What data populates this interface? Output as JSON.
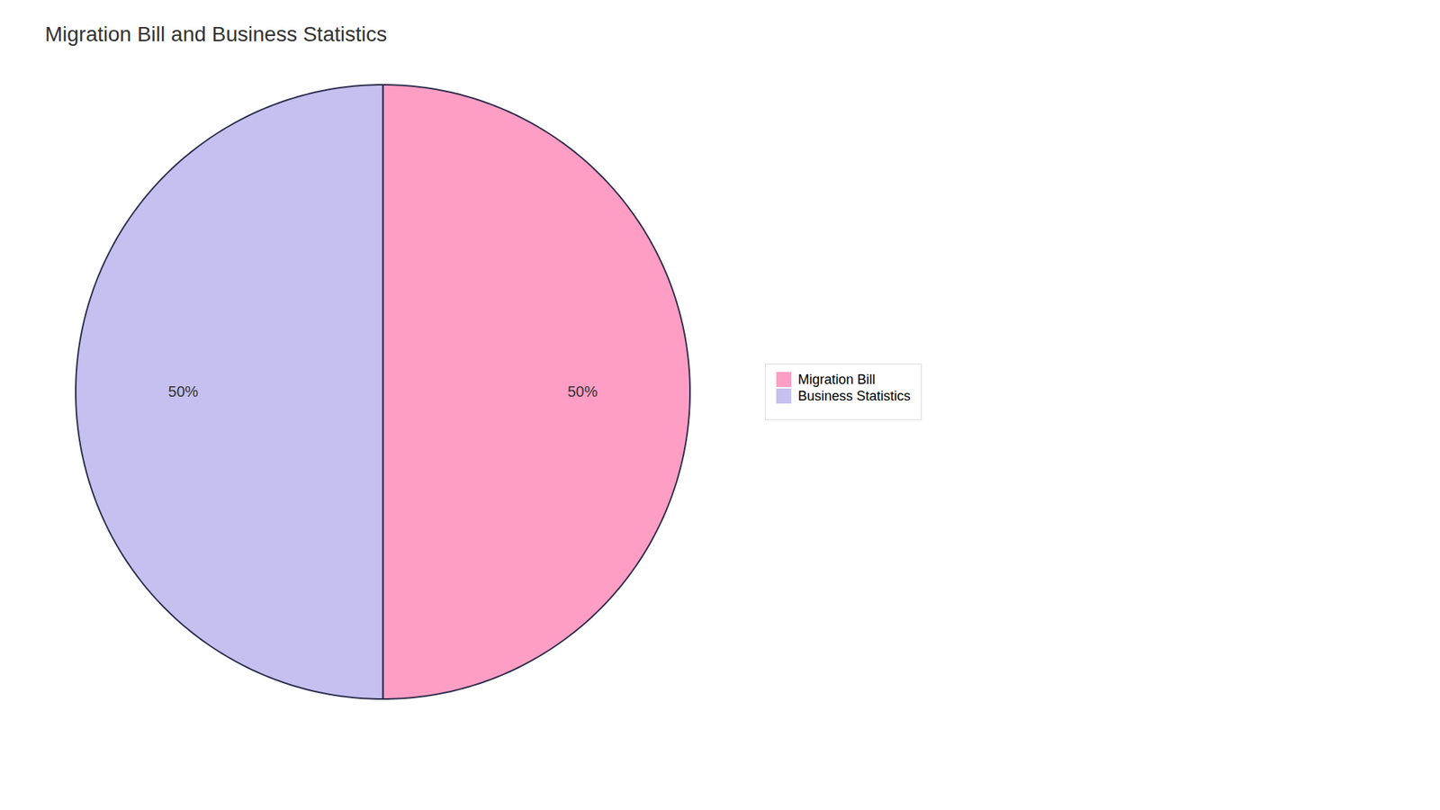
{
  "chart_data": {
    "type": "pie",
    "title": "Migration Bill and Business Statistics",
    "categories": [
      "Migration Bill",
      "Business Statistics"
    ],
    "values": [
      50,
      50
    ],
    "value_labels": [
      "50%",
      "50%"
    ],
    "colors": [
      "#FF9EC4",
      "#C5C0F0"
    ],
    "data_labels": true,
    "legend": "right"
  }
}
